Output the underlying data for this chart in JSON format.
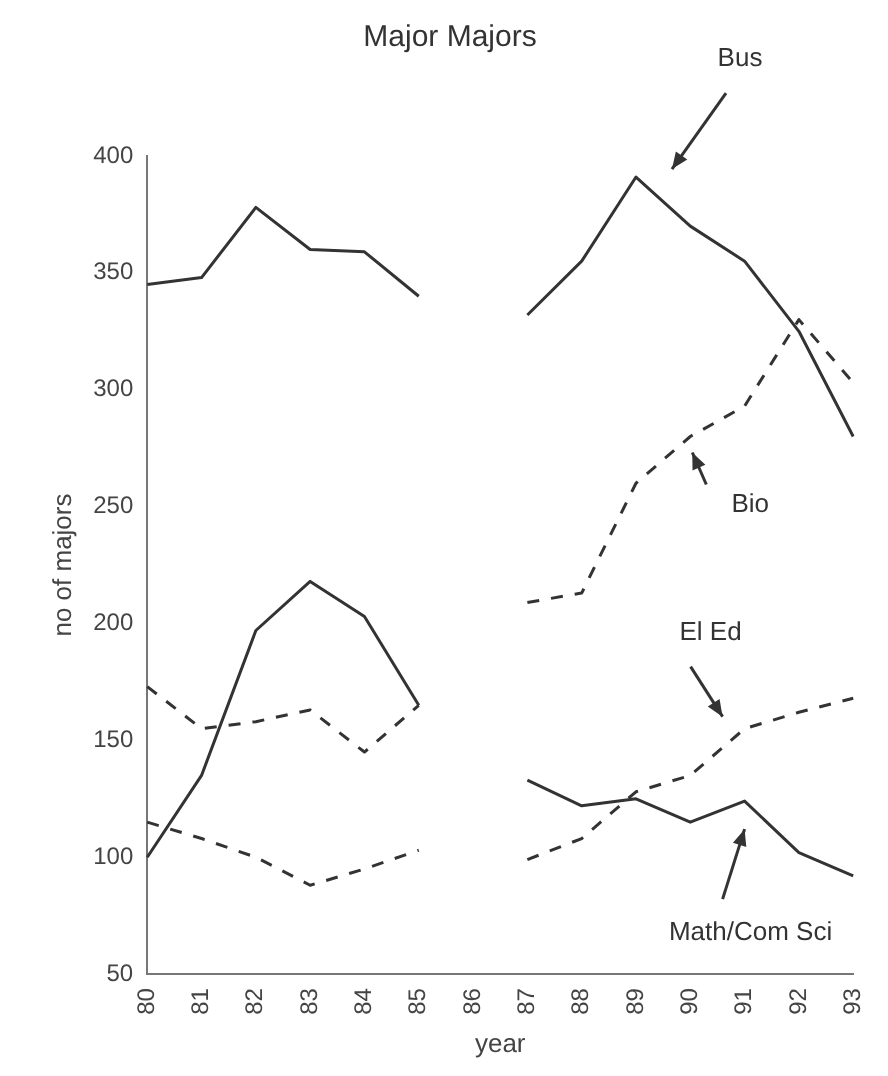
{
  "chart_data": {
    "type": "line",
    "title": "Major Majors",
    "xlabel": "year",
    "ylabel": "no of majors",
    "categories": [
      "80",
      "81",
      "82",
      "83",
      "84",
      "85",
      "86",
      "87",
      "88",
      "89",
      "90",
      "91",
      "92",
      "93"
    ],
    "series": [
      {
        "name": "Bus",
        "color": "#333333",
        "line_style": "solid",
        "values": [
          345,
          348,
          378,
          360,
          359,
          340,
          null,
          332,
          355,
          391,
          370,
          355,
          325,
          280
        ]
      },
      {
        "name": "Bio",
        "color": "#333333",
        "line_style": "dashed",
        "values": [
          173,
          155,
          158,
          163,
          145,
          165,
          null,
          209,
          213,
          260,
          280,
          293,
          330,
          303
        ]
      },
      {
        "name": "El Ed",
        "color": "#333333",
        "line_style": "dashed",
        "values": [
          115,
          108,
          100,
          88,
          95,
          103,
          null,
          99,
          108,
          128,
          135,
          155,
          162,
          168
        ]
      },
      {
        "name": "Math/Com Sci",
        "color": "#333333",
        "line_style": "solid",
        "values": [
          100,
          135,
          197,
          218,
          203,
          165,
          null,
          133,
          122,
          125,
          115,
          124,
          102,
          92
        ]
      }
    ],
    "ylim": [
      50,
      400
    ],
    "yticks": [
      50,
      100,
      150,
      200,
      250,
      300,
      350,
      400
    ],
    "grid": false,
    "legend": false,
    "marker": "none"
  }
}
